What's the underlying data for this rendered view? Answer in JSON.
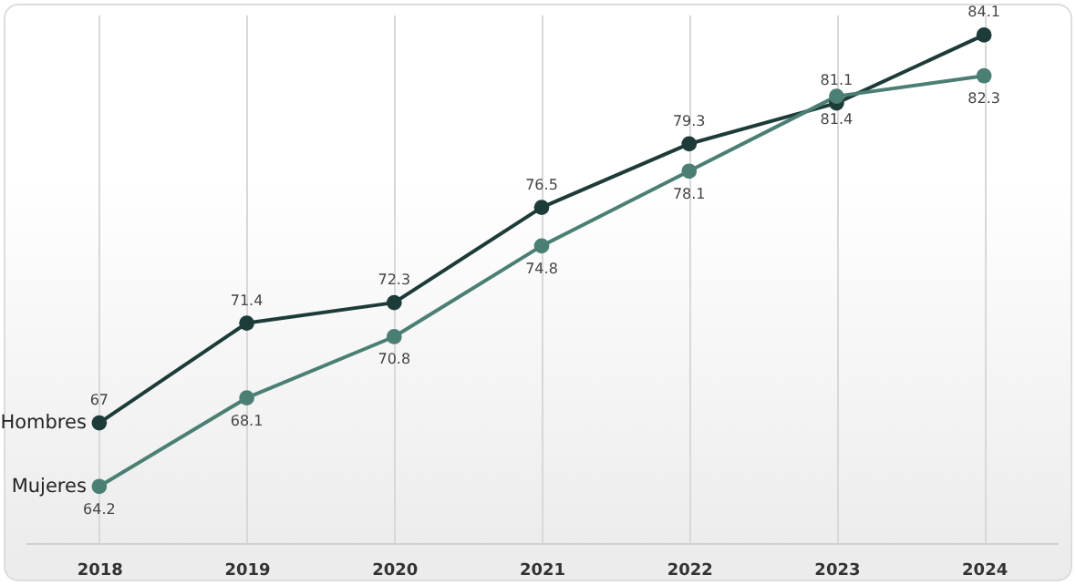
{
  "chart_data": {
    "type": "line",
    "categories": [
      "2018",
      "2019",
      "2020",
      "2021",
      "2022",
      "2023",
      "2024"
    ],
    "series": [
      {
        "name": "Hombres",
        "color": "#1d3b38",
        "values": [
          67,
          71.4,
          72.3,
          76.5,
          79.3,
          81.1,
          84.1
        ]
      },
      {
        "name": "Mujeres",
        "color": "#4b7f74",
        "values": [
          64.2,
          68.1,
          70.8,
          74.8,
          78.1,
          81.4,
          82.3
        ]
      }
    ],
    "ylim": [
      61.7,
      85
    ],
    "tick_labels": "x",
    "data_labels": true,
    "marker": "circle",
    "line_style": "solid",
    "grid": "x"
  }
}
